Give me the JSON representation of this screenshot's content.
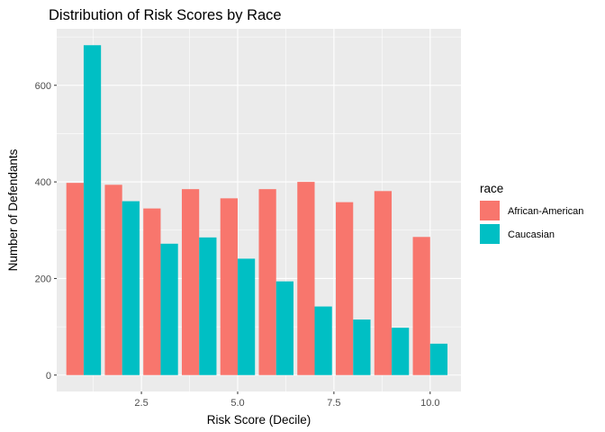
{
  "chart_data": {
    "type": "bar",
    "title": "Distribution of Risk Scores by Race",
    "xlabel": "Risk Score (Decile)",
    "ylabel": "Number of Defendants",
    "categories": [
      1,
      2,
      3,
      4,
      5,
      6,
      7,
      8,
      9,
      10
    ],
    "series": [
      {
        "name": "African-American",
        "color": "#F8766D",
        "values": [
          398,
          394,
          345,
          385,
          366,
          385,
          400,
          358,
          381,
          286
        ]
      },
      {
        "name": "Caucasian",
        "color": "#00BFC4",
        "values": [
          683,
          360,
          272,
          285,
          241,
          194,
          142,
          115,
          98,
          65
        ]
      }
    ],
    "x_ticks": [
      {
        "value": 2.5,
        "label": "2.5"
      },
      {
        "value": 5.0,
        "label": "5.0"
      },
      {
        "value": 7.5,
        "label": "7.5"
      },
      {
        "value": 10.0,
        "label": "10.0"
      }
    ],
    "y_ticks": [
      {
        "value": 0,
        "label": "0"
      },
      {
        "value": 200,
        "label": "200"
      },
      {
        "value": 400,
        "label": "400"
      },
      {
        "value": 600,
        "label": "600"
      }
    ],
    "xlim": [
      0.3,
      10.8
    ],
    "ylim": [
      -34,
      717
    ],
    "grid": true,
    "legend": {
      "title": "race",
      "position": "right"
    }
  }
}
